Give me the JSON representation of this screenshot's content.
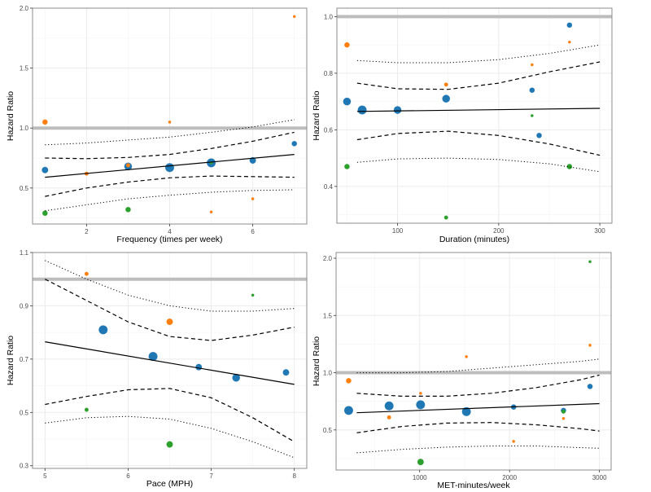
{
  "colors": {
    "blue": "#1f77b4",
    "orange": "#ff7f0e",
    "green": "#2ca02c",
    "reference_line": "#bdbdbd",
    "fit_line": "#000000",
    "panel_border": "#8c8c8c",
    "grid": "#ebebeb"
  },
  "chart_data": [
    {
      "type": "scatter",
      "panel": "top-left",
      "title": "",
      "xlabel": "Frequency (times per week)",
      "ylabel": "Hazard Ratio",
      "xlim": [
        0.7,
        7.3
      ],
      "ylim": [
        0.2,
        2.0
      ],
      "xticks": [
        2,
        4,
        6
      ],
      "yticks": [
        0.5,
        1.0,
        1.5,
        2.0
      ],
      "ytick_labels": [
        "0.5",
        "1.0",
        "1.5",
        "2.0"
      ],
      "reference_line": 1.0,
      "grid": true,
      "points": [
        {
          "x": 1,
          "y": 0.65,
          "series": "blue",
          "size": 3
        },
        {
          "x": 3,
          "y": 0.68,
          "series": "blue",
          "size": 4
        },
        {
          "x": 4,
          "y": 0.67,
          "series": "blue",
          "size": 5
        },
        {
          "x": 5,
          "y": 0.71,
          "series": "blue",
          "size": 5
        },
        {
          "x": 6,
          "y": 0.73,
          "series": "blue",
          "size": 3
        },
        {
          "x": 7,
          "y": 0.87,
          "series": "blue",
          "size": 2
        },
        {
          "x": 1,
          "y": 1.05,
          "series": "orange",
          "size": 2
        },
        {
          "x": 2,
          "y": 0.62,
          "series": "orange",
          "size": 1
        },
        {
          "x": 3,
          "y": 0.69,
          "series": "orange",
          "size": 1
        },
        {
          "x": 4,
          "y": 1.05,
          "series": "orange",
          "size": 0
        },
        {
          "x": 5,
          "y": 0.3,
          "series": "orange",
          "size": 0
        },
        {
          "x": 6,
          "y": 0.41,
          "series": "orange",
          "size": 0
        },
        {
          "x": 7,
          "y": 1.93,
          "series": "orange",
          "size": 0
        },
        {
          "x": 1,
          "y": 0.29,
          "series": "green",
          "size": 2
        },
        {
          "x": 3,
          "y": 0.32,
          "series": "green",
          "size": 2
        },
        {
          "x": 5,
          "y": 0.71,
          "series": "green",
          "size": 0
        }
      ],
      "fit": {
        "x": [
          1,
          7
        ],
        "y": [
          0.59,
          0.78
        ]
      },
      "ci_inner_lower": {
        "x": [
          1,
          2,
          3,
          4,
          5,
          6,
          7
        ],
        "y": [
          0.43,
          0.5,
          0.55,
          0.585,
          0.6,
          0.595,
          0.59
        ]
      },
      "ci_inner_upper": {
        "x": [
          1,
          2,
          3,
          4,
          5,
          6,
          7
        ],
        "y": [
          0.75,
          0.745,
          0.755,
          0.78,
          0.83,
          0.89,
          0.965
        ]
      },
      "ci_outer_lower": {
        "x": [
          1,
          2,
          3,
          4,
          5,
          6,
          7
        ],
        "y": [
          0.31,
          0.36,
          0.41,
          0.44,
          0.465,
          0.48,
          0.485
        ]
      },
      "ci_outer_upper": {
        "x": [
          1,
          2,
          3,
          4,
          5,
          6,
          7
        ],
        "y": [
          0.86,
          0.875,
          0.9,
          0.925,
          0.965,
          1.01,
          1.07
        ]
      }
    },
    {
      "type": "scatter",
      "panel": "top-right",
      "title": "",
      "xlabel": "Duration (minutes)",
      "ylabel": "Hazard Ratio",
      "xlim": [
        40,
        312
      ],
      "ylim": [
        0.27,
        1.03
      ],
      "xticks": [
        100,
        200,
        300
      ],
      "yticks": [
        0.4,
        0.6,
        0.8,
        1.0
      ],
      "ytick_labels": [
        "0.4",
        "0.6",
        "0.8",
        "1.0"
      ],
      "reference_line": 1.0,
      "grid": true,
      "points": [
        {
          "x": 50,
          "y": 0.7,
          "series": "blue",
          "size": 4
        },
        {
          "x": 65,
          "y": 0.67,
          "series": "blue",
          "size": 5
        },
        {
          "x": 100,
          "y": 0.67,
          "series": "blue",
          "size": 4
        },
        {
          "x": 148,
          "y": 0.71,
          "series": "blue",
          "size": 4
        },
        {
          "x": 233,
          "y": 0.74,
          "series": "blue",
          "size": 2
        },
        {
          "x": 240,
          "y": 0.58,
          "series": "blue",
          "size": 2
        },
        {
          "x": 270,
          "y": 0.97,
          "series": "blue",
          "size": 2
        },
        {
          "x": 50,
          "y": 0.9,
          "series": "orange",
          "size": 2
        },
        {
          "x": 148,
          "y": 0.76,
          "series": "orange",
          "size": 1
        },
        {
          "x": 233,
          "y": 0.83,
          "series": "orange",
          "size": 0
        },
        {
          "x": 270,
          "y": 0.91,
          "series": "orange",
          "size": 0
        },
        {
          "x": 50,
          "y": 0.47,
          "series": "green",
          "size": 2
        },
        {
          "x": 148,
          "y": 0.29,
          "series": "green",
          "size": 1
        },
        {
          "x": 233,
          "y": 0.65,
          "series": "green",
          "size": 0
        },
        {
          "x": 270,
          "y": 0.47,
          "series": "green",
          "size": 2
        }
      ],
      "fit": {
        "x": [
          60,
          300
        ],
        "y": [
          0.665,
          0.676
        ]
      },
      "ci_inner_lower": {
        "x": [
          60,
          100,
          150,
          200,
          250,
          300
        ],
        "y": [
          0.565,
          0.587,
          0.595,
          0.58,
          0.55,
          0.51
        ]
      },
      "ci_inner_upper": {
        "x": [
          60,
          100,
          150,
          200,
          250,
          300
        ],
        "y": [
          0.765,
          0.745,
          0.743,
          0.765,
          0.805,
          0.84
        ]
      },
      "ci_outer_lower": {
        "x": [
          60,
          100,
          150,
          200,
          250,
          300
        ],
        "y": [
          0.485,
          0.497,
          0.5,
          0.495,
          0.48,
          0.452
        ]
      },
      "ci_outer_upper": {
        "x": [
          60,
          100,
          150,
          200,
          250,
          300
        ],
        "y": [
          0.845,
          0.837,
          0.837,
          0.848,
          0.87,
          0.9
        ]
      }
    },
    {
      "type": "scatter",
      "panel": "bottom-left",
      "title": "",
      "xlabel": "Pace (MPH)",
      "ylabel": "Hazard Ratio",
      "xlim": [
        4.85,
        8.15
      ],
      "ylim": [
        0.29,
        1.1
      ],
      "xticks": [
        5,
        6,
        7,
        8
      ],
      "yticks": [
        0.3,
        0.5,
        0.7,
        0.9,
        1.1
      ],
      "ytick_labels": [
        "0.3",
        "0.5",
        "0.7",
        "0.9",
        "1.1"
      ],
      "reference_line": 1.0,
      "grid": true,
      "points": [
        {
          "x": 5.7,
          "y": 0.81,
          "series": "blue",
          "size": 5
        },
        {
          "x": 6.3,
          "y": 0.71,
          "series": "blue",
          "size": 5
        },
        {
          "x": 6.85,
          "y": 0.67,
          "series": "blue",
          "size": 3
        },
        {
          "x": 7.3,
          "y": 0.63,
          "series": "blue",
          "size": 4
        },
        {
          "x": 7.9,
          "y": 0.65,
          "series": "blue",
          "size": 3
        },
        {
          "x": 5.5,
          "y": 1.02,
          "series": "orange",
          "size": 1
        },
        {
          "x": 6.5,
          "y": 0.84,
          "series": "orange",
          "size": 3
        },
        {
          "x": 5.5,
          "y": 0.51,
          "series": "green",
          "size": 1
        },
        {
          "x": 6.5,
          "y": 0.38,
          "series": "green",
          "size": 3
        },
        {
          "x": 7.5,
          "y": 0.94,
          "series": "green",
          "size": 0
        }
      ],
      "fit": {
        "x": [
          5,
          8
        ],
        "y": [
          0.765,
          0.605
        ]
      },
      "ci_inner_lower": {
        "x": [
          5,
          5.5,
          6,
          6.5,
          7,
          7.5,
          8
        ],
        "y": [
          0.53,
          0.56,
          0.585,
          0.59,
          0.555,
          0.48,
          0.39
        ]
      },
      "ci_inner_upper": {
        "x": [
          5,
          5.5,
          6,
          6.5,
          7,
          7.5,
          8
        ],
        "y": [
          1.0,
          0.92,
          0.84,
          0.785,
          0.77,
          0.79,
          0.82
        ]
      },
      "ci_outer_lower": {
        "x": [
          5,
          5.5,
          6,
          6.5,
          7,
          7.5,
          8
        ],
        "y": [
          0.46,
          0.48,
          0.485,
          0.475,
          0.44,
          0.39,
          0.33
        ]
      },
      "ci_outer_upper": {
        "x": [
          5,
          5.5,
          6,
          6.5,
          7,
          7.5,
          8
        ],
        "y": [
          1.07,
          1.0,
          0.94,
          0.9,
          0.88,
          0.88,
          0.89
        ]
      }
    },
    {
      "type": "scatter",
      "panel": "bottom-right",
      "title": "",
      "xlabel": "MET-minutes/week",
      "ylabel": "Hazard Ratio",
      "xlim": [
        70,
        3130
      ],
      "ylim": [
        0.15,
        2.05
      ],
      "xticks": [
        1000,
        2000,
        3000
      ],
      "yticks": [
        0.5,
        1.0,
        1.5,
        2.0
      ],
      "ytick_labels": [
        "0.5",
        "1.0",
        "1.5",
        "2.0"
      ],
      "reference_line": 1.0,
      "grid": true,
      "points": [
        {
          "x": 210,
          "y": 0.67,
          "series": "blue",
          "size": 5
        },
        {
          "x": 660,
          "y": 0.71,
          "series": "blue",
          "size": 5
        },
        {
          "x": 1010,
          "y": 0.72,
          "series": "blue",
          "size": 5
        },
        {
          "x": 1520,
          "y": 0.66,
          "series": "blue",
          "size": 5
        },
        {
          "x": 2045,
          "y": 0.7,
          "series": "blue",
          "size": 2
        },
        {
          "x": 2600,
          "y": 0.67,
          "series": "blue",
          "size": 2
        },
        {
          "x": 2895,
          "y": 0.88,
          "series": "blue",
          "size": 2
        },
        {
          "x": 210,
          "y": 0.93,
          "series": "orange",
          "size": 2
        },
        {
          "x": 660,
          "y": 0.61,
          "series": "orange",
          "size": 1
        },
        {
          "x": 1010,
          "y": 0.82,
          "series": "orange",
          "size": 0
        },
        {
          "x": 1520,
          "y": 1.14,
          "series": "orange",
          "size": 0
        },
        {
          "x": 2045,
          "y": 0.4,
          "series": "orange",
          "size": 0
        },
        {
          "x": 2600,
          "y": 0.6,
          "series": "orange",
          "size": 0
        },
        {
          "x": 2895,
          "y": 1.24,
          "series": "orange",
          "size": 0
        },
        {
          "x": 1010,
          "y": 0.22,
          "series": "green",
          "size": 3
        },
        {
          "x": 2600,
          "y": 0.66,
          "series": "green",
          "size": 1
        },
        {
          "x": 2895,
          "y": 1.97,
          "series": "green",
          "size": 0
        }
      ],
      "fit": {
        "x": [
          300,
          3000
        ],
        "y": [
          0.65,
          0.73
        ]
      },
      "ci_inner_lower": {
        "x": [
          300,
          800,
          1300,
          1800,
          2300,
          2800,
          3000
        ],
        "y": [
          0.475,
          0.53,
          0.56,
          0.565,
          0.545,
          0.51,
          0.49
        ]
      },
      "ci_inner_upper": {
        "x": [
          300,
          800,
          1300,
          1800,
          2300,
          2800,
          3000
        ],
        "y": [
          0.82,
          0.795,
          0.795,
          0.82,
          0.87,
          0.94,
          0.98
        ]
      },
      "ci_outer_lower": {
        "x": [
          300,
          800,
          1300,
          1800,
          2300,
          2800,
          3000
        ],
        "y": [
          0.3,
          0.33,
          0.35,
          0.36,
          0.36,
          0.345,
          0.34
        ]
      },
      "ci_outer_upper": {
        "x": [
          300,
          800,
          1300,
          1800,
          2300,
          2800,
          3000
        ],
        "y": [
          1.0,
          1.0,
          1.01,
          1.04,
          1.07,
          1.1,
          1.12
        ]
      }
    }
  ]
}
